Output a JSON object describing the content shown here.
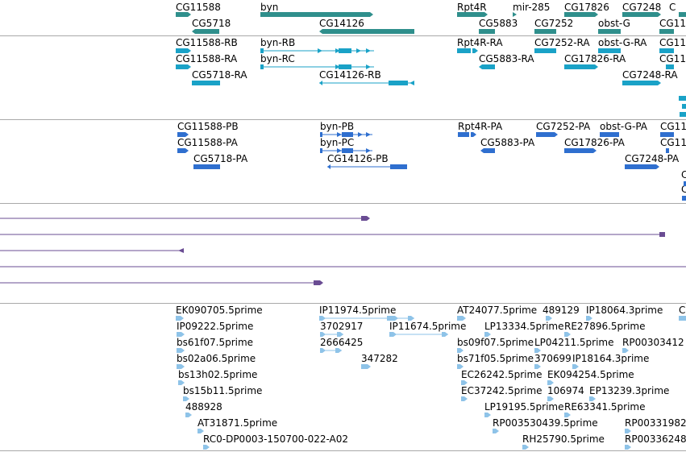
{
  "colors": {
    "gene": "#2f8f8c",
    "transcript": "#1aa2c7",
    "protein": "#2f6fcf",
    "alignment": "#6a4c93",
    "est": "#8ec3e8",
    "separator": "#a9a9a9"
  },
  "tracks": {
    "genes": {
      "features": [
        {
          "label": "CG11588"
        },
        {
          "label": "byn"
        },
        {
          "label": "Rpt4R"
        },
        {
          "label": "mir-285"
        },
        {
          "label": "CG17826"
        },
        {
          "label": "CG7248"
        },
        {
          "label": "C"
        },
        {
          "label": "CG5718"
        },
        {
          "label": "CG14126"
        },
        {
          "label": "CG5883"
        },
        {
          "label": "CG7252"
        },
        {
          "label": "obst-G"
        },
        {
          "label": "CG11"
        }
      ]
    },
    "transcripts": {
      "features": [
        {
          "label": "CG11588-RB"
        },
        {
          "label": "byn-RB"
        },
        {
          "label": "Rpt4R-RA"
        },
        {
          "label": "CG7252-RA"
        },
        {
          "label": "obst-G-RA"
        },
        {
          "label": "CG11"
        },
        {
          "label": "CG11588-RA"
        },
        {
          "label": "byn-RC"
        },
        {
          "label": "CG5883-RA"
        },
        {
          "label": "CG17826-RA"
        },
        {
          "label": "CG11"
        },
        {
          "label": "CG5718-RA"
        },
        {
          "label": "CG14126-RB"
        },
        {
          "label": "CG7248-RA"
        }
      ]
    },
    "proteins": {
      "features": [
        {
          "label": "CG11588-PB"
        },
        {
          "label": "byn-PB"
        },
        {
          "label": "Rpt4R-PA"
        },
        {
          "label": "CG7252-PA"
        },
        {
          "label": "obst-G-PA"
        },
        {
          "label": "CG11"
        },
        {
          "label": "CG11588-PA"
        },
        {
          "label": "byn-PC"
        },
        {
          "label": "CG5883-PA"
        },
        {
          "label": "CG17826-PA"
        },
        {
          "label": "CG11"
        },
        {
          "label": "CG5718-PA"
        },
        {
          "label": "CG14126-PB"
        },
        {
          "label": "CG7248-PA"
        },
        {
          "label": "C"
        },
        {
          "label": "C"
        }
      ]
    },
    "ests": {
      "features": [
        {
          "label": "EK090705.5prime"
        },
        {
          "label": "IP11974.5prime"
        },
        {
          "label": "AT24077.5prime"
        },
        {
          "label": "489129"
        },
        {
          "label": "IP18064.3prime"
        },
        {
          "label": "C"
        },
        {
          "label": "IP09222.5prime"
        },
        {
          "label": "3702917"
        },
        {
          "label": "IP11674.5prime"
        },
        {
          "label": "LP13334.5prime"
        },
        {
          "label": "RE27896.5prime"
        },
        {
          "label": "bs61f07.5prime"
        },
        {
          "label": "2666425"
        },
        {
          "label": "bs09f07.5prime"
        },
        {
          "label": "LP04211.5prime"
        },
        {
          "label": "RP00303412"
        },
        {
          "label": "bs02a06.5prime"
        },
        {
          "label": "347282"
        },
        {
          "label": "bs71f05.5prime"
        },
        {
          "label": "370699"
        },
        {
          "label": "IP18164.3prime"
        },
        {
          "label": "bs13h02.5prime"
        },
        {
          "label": "EC26242.5prime"
        },
        {
          "label": "EK094254.5prime"
        },
        {
          "label": "bs15b11.5prime"
        },
        {
          "label": "EC37242.5prime"
        },
        {
          "label": "106974"
        },
        {
          "label": "EP13239.3prime"
        },
        {
          "label": "488928"
        },
        {
          "label": "LP19195.5prime"
        },
        {
          "label": "RE63341.5prime"
        },
        {
          "label": "AT31871.5prime"
        },
        {
          "label": "RP003530439.5prime"
        },
        {
          "label": "RP00331982"
        },
        {
          "label": "RC0-DP0003-150700-022-A02"
        },
        {
          "label": "RH25790.5prime"
        },
        {
          "label": "RP00336248"
        }
      ]
    }
  }
}
